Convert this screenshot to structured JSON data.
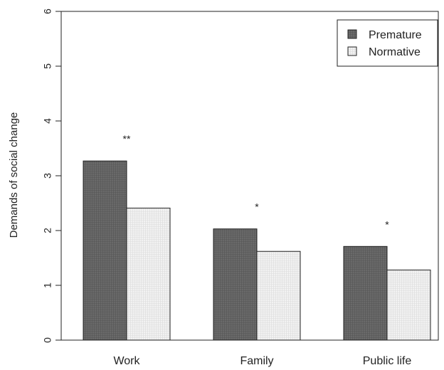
{
  "chart_data": {
    "type": "bar",
    "categories": [
      "Work",
      "Family",
      "Public life"
    ],
    "series": [
      {
        "name": "Premature",
        "values": [
          3.27,
          2.03,
          1.71
        ],
        "color": "#666666"
      },
      {
        "name": "Normative",
        "values": [
          2.41,
          1.62,
          1.28
        ],
        "color": "#eeeeee"
      }
    ],
    "significance": [
      "**",
      "*",
      "*"
    ],
    "ylabel": "Demands of social change",
    "xlabel": "",
    "ylim": [
      0,
      6
    ],
    "yticks": [
      "0",
      "1",
      "2",
      "3",
      "4",
      "5",
      "6"
    ],
    "legend_position": "top-right",
    "grid": false
  }
}
